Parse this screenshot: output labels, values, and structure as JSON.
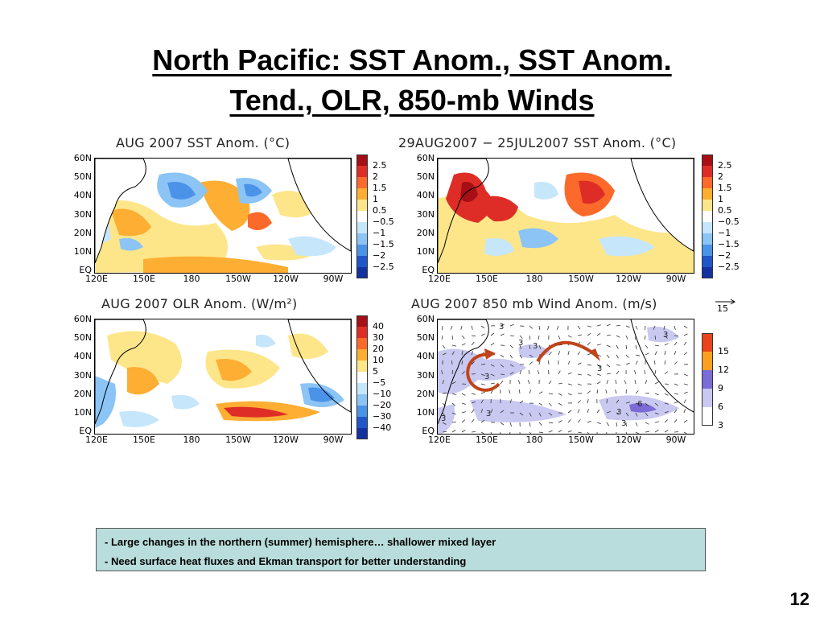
{
  "slide": {
    "title_line1": "North Pacific: SST Anom., SST Anom.",
    "title_line2": "Tend., OLR, 850-mb Winds",
    "page_number": "12"
  },
  "axes": {
    "lat_ticks": [
      "60N",
      "50N",
      "40N",
      "30N",
      "20N",
      "10N",
      "EQ"
    ],
    "lon_ticks": [
      "120E",
      "150E",
      "180",
      "150W",
      "120W",
      "90W"
    ]
  },
  "panels": [
    {
      "id": "sst-anom",
      "title": "AUG 2007 SST Anom. (°C)",
      "colorbar": {
        "labels": [
          "2.5",
          "2",
          "1.5",
          "1",
          "0.5",
          "−0.5",
          "−1",
          "−1.5",
          "−2",
          "−2.5"
        ],
        "colors": [
          "#a50f15",
          "#de2d26",
          "#fb6a2a",
          "#fdae33",
          "#fde68a",
          "#ffffff",
          "#c6e6fb",
          "#8cc4f5",
          "#4b93e8",
          "#1f57c9",
          "#1431a0"
        ]
      }
    },
    {
      "id": "sst-tend",
      "title": "29AUG2007 − 25JUL2007 SST Anom. (°C)",
      "colorbar": {
        "labels": [
          "2.5",
          "2",
          "1.5",
          "1",
          "0.5",
          "−0.5",
          "−1",
          "−1.5",
          "−2",
          "−2.5"
        ],
        "colors": [
          "#a50f15",
          "#de2d26",
          "#fb6a2a",
          "#fdae33",
          "#fde68a",
          "#ffffff",
          "#c6e6fb",
          "#8cc4f5",
          "#4b93e8",
          "#1f57c9",
          "#1431a0"
        ]
      }
    },
    {
      "id": "olr-anom",
      "title": "AUG 2007 OLR Anom. (W/m²)",
      "colorbar": {
        "labels": [
          "40",
          "30",
          "20",
          "10",
          "5",
          "−5",
          "−10",
          "−20",
          "−30",
          "−40"
        ],
        "colors": [
          "#a50f15",
          "#de2d26",
          "#fb6a2a",
          "#fdae33",
          "#fde68a",
          "#ffffff",
          "#c6e6fb",
          "#8cc4f5",
          "#4b93e8",
          "#1f57c9",
          "#1431a0"
        ]
      }
    },
    {
      "id": "wind-anom",
      "title": "AUG 2007 850 mb Wind Anom. (m/s)",
      "reference_vector": "15",
      "colorbar": {
        "labels": [
          "15",
          "12",
          "9",
          "6",
          "3"
        ],
        "colors": [
          "#e8451e",
          "#fca024",
          "#7b6cd6",
          "#c8c8f0",
          "#ffffff"
        ]
      },
      "contour_labels": [
        "3",
        "3",
        "3",
        "3",
        "3",
        "3",
        "3",
        "3",
        "6",
        "3",
        "3"
      ]
    }
  ],
  "notes": [
    "- Large changes in the northern (summer) hemisphere… shallower mixed layer",
    "- Need surface heat fluxes and Ekman transport for better understanding"
  ]
}
